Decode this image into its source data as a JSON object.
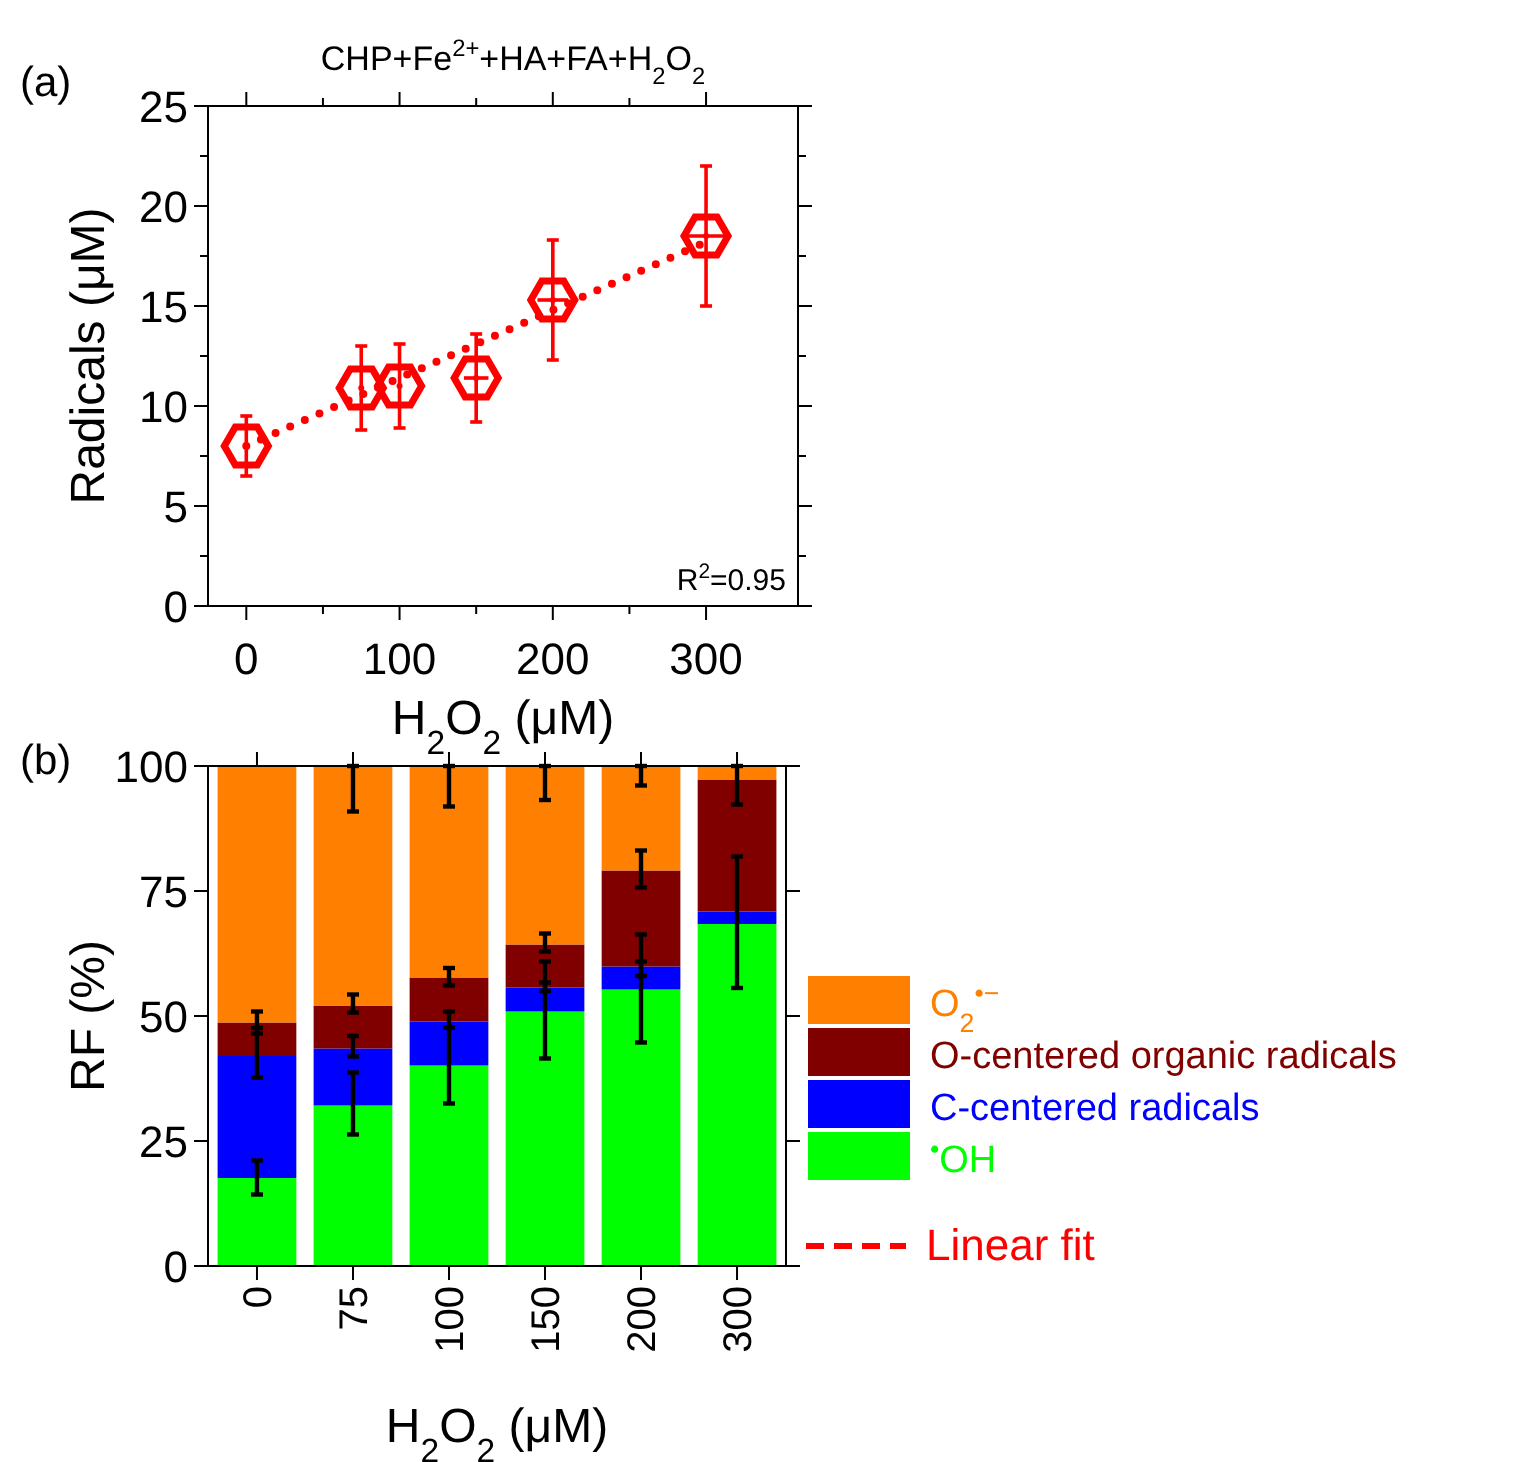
{
  "chart_data": [
    {
      "type": "scatter",
      "title": "CHP+Fe$^{2+}$+HA+FA+H$_{2}$O$_{2}$",
      "xlabel": "H$_{2}$O$_{2}$ (μM)",
      "ylabel": "Radicals (μM)",
      "annotations": [
        "(a)",
        "R$^{2}$=0.95"
      ],
      "xlim": [
        -25,
        360
      ],
      "xticks": [
        0,
        {
          "value": 50,
          "label": null
        },
        100,
        {
          "value": 150,
          "label": null
        },
        200,
        {
          "value": 250,
          "label": null
        },
        300
      ],
      "ylim": [
        0,
        25
      ],
      "yticks": [
        0,
        {
          "value": 2.5,
          "label": null
        },
        5,
        {
          "value": 7.5,
          "label": null
        },
        10,
        {
          "value": 12.5,
          "label": null
        },
        15,
        {
          "value": 17.5,
          "label": null
        },
        20,
        {
          "value": 22.5,
          "label": null
        },
        25
      ],
      "legend": "right",
      "series": [
        {
          "type": "scatter",
          "color": "#ff0000",
          "x": [
            0,
            75,
            100,
            150,
            200,
            300
          ],
          "values": [
            8.0,
            10.9,
            11.0,
            11.4,
            15.3,
            18.5
          ],
          "errors": [
            1.5,
            2.1,
            2.1,
            2.2,
            3.0,
            3.5
          ],
          "xerrors": [
            null,
            null,
            null,
            8,
            10,
            12
          ]
        },
        {
          "type": "line",
          "name": "Linear fit",
          "color": "#ff0000",
          "line_style": "dotted",
          "x": [
            0,
            300
          ],
          "values": [
            8.0,
            18.2
          ]
        }
      ]
    },
    {
      "type": "bar",
      "stacked": true,
      "xlabel": "H$_{2}$O$_{2}$ (μM)",
      "ylabel": "RF (%)",
      "annotations": [
        "(b)"
      ],
      "categories": [
        "0",
        "75",
        "100",
        "150",
        "200",
        "300"
      ],
      "ylim": [
        0,
        100
      ],
      "yticks": [
        0,
        25,
        50,
        75,
        100
      ],
      "legend": "right",
      "series": [
        {
          "name": "$^{•}$OH",
          "color": "#00ff00",
          "values": [
            17.6,
            32.1,
            40.1,
            50.9,
            55.3,
            68.4
          ],
          "errors": [
            [
              14.3,
              21.1
            ],
            [
              26.3,
              38.7
            ],
            [
              32.5,
              47.7
            ],
            [
              41.5,
              56.7
            ],
            [
              44.7,
              60.9
            ],
            [
              55.6,
              81.9
            ]
          ]
        },
        {
          "name": "C-centered radicals",
          "color": "#0000ff",
          "values": [
            24.4,
            11.4,
            8.8,
            4.8,
            4.6,
            2.5
          ],
          "errors": [
            [
              37.7,
              47.6
            ],
            [
              41.9,
              46
            ],
            [
              47.7,
              50.9
            ],
            [
              55,
              60.9
            ],
            [
              58,
              66.3
            ],
            null
          ]
        },
        {
          "name": "O-centered organic radicals",
          "color": "#800000",
          "values": [
            6.7,
            8.5,
            8.8,
            8.6,
            19.2,
            26.4
          ],
          "errors": [
            [
              46.5,
              50.9
            ],
            [
              50.7,
              54.3
            ],
            [
              56.1,
              59.6
            ],
            [
              62.9,
              66.5
            ],
            [
              75.7,
              83.1
            ],
            [
              92.3,
              100
            ]
          ]
        },
        {
          "name": "O$_{2}$$^{•−}$",
          "color": "#ff8000",
          "values": [
            51.3,
            48,
            42.3,
            35.7,
            20.9,
            2.7
          ],
          "errors": [
            null,
            [
              90.9,
              100
            ],
            [
              91.9,
              100
            ],
            [
              93.2,
              100
            ],
            [
              96.1,
              100
            ],
            null
          ]
        }
      ]
    }
  ]
}
